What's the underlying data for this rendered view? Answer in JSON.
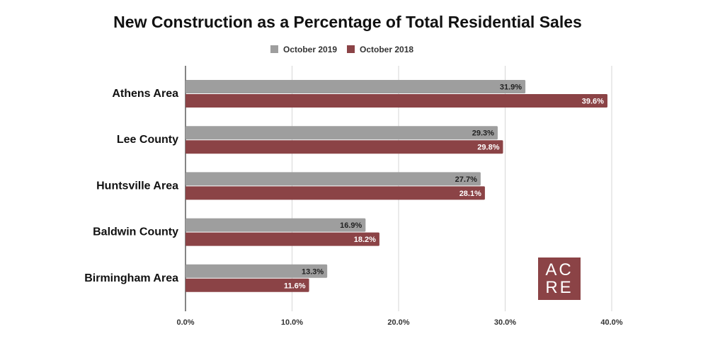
{
  "chart_data": {
    "type": "bar",
    "orientation": "horizontal",
    "title": "New Construction as a Percentage of Total Residential Sales",
    "categories": [
      "Athens Area",
      "Lee County",
      "Huntsville Area",
      "Baldwin County",
      "Birmingham Area"
    ],
    "series": [
      {
        "name": "October 2019",
        "color": "#9e9e9e",
        "label_color": "#222222",
        "values": [
          31.9,
          29.3,
          27.7,
          16.9,
          13.3
        ],
        "labels": [
          "31.9%",
          "29.3%",
          "27.7%",
          "16.9%",
          "13.3%"
        ]
      },
      {
        "name": "October 2018",
        "color": "#8b4346",
        "label_color": "#ffffff",
        "values": [
          39.6,
          29.8,
          28.1,
          18.2,
          11.6
        ],
        "labels": [
          "39.6%",
          "29.8%",
          "28.1%",
          "18.2%",
          "11.6%"
        ]
      }
    ],
    "xlim": [
      0,
      40
    ],
    "xticks": [
      0,
      10,
      20,
      30,
      40
    ],
    "xtick_labels": [
      "0.0%",
      "10.0%",
      "20.0%",
      "30.0%",
      "40.0%"
    ],
    "grid": true,
    "legend_position": "top-center",
    "xlabel": "",
    "ylabel": ""
  },
  "logo": {
    "line1": "AC",
    "line2": "RE",
    "background": "#8b4346"
  }
}
